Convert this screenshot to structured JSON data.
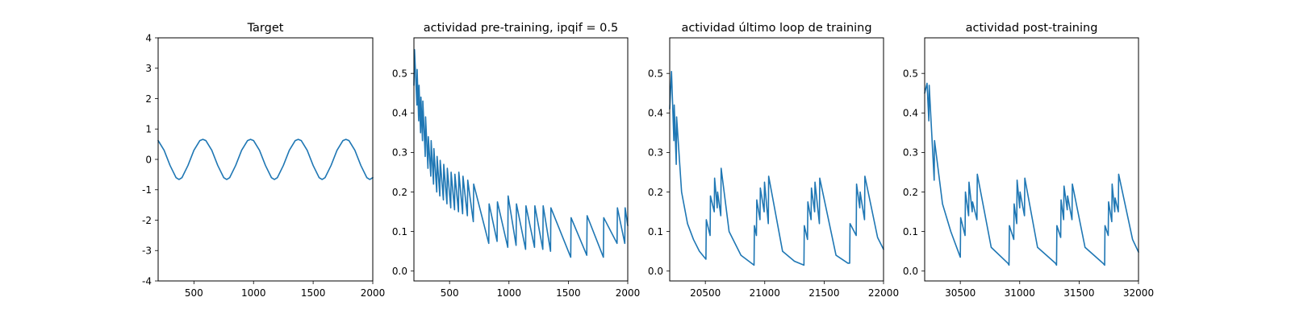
{
  "chart_data": [
    {
      "type": "line",
      "title": "Target",
      "xlim": [
        200,
        2000
      ],
      "ylim": [
        -4,
        4
      ],
      "xticks": [
        500,
        1000,
        1500,
        2000
      ],
      "yticks": [
        -4,
        -3,
        -2,
        -1,
        0,
        1,
        2,
        3,
        4
      ],
      "line_color": "#1f77b4",
      "series": [
        {
          "x": [
            200,
            250,
            300,
            350,
            375,
            400,
            450,
            500,
            550,
            575,
            600,
            650,
            700,
            750,
            775,
            800,
            850,
            900,
            950,
            975,
            1000,
            1050,
            1100,
            1150,
            1175,
            1200,
            1250,
            1300,
            1350,
            1375,
            1400,
            1450,
            1500,
            1550,
            1575,
            1600,
            1650,
            1700,
            1750,
            1775,
            1800,
            1850,
            1900,
            1950,
            1975,
            2000
          ],
          "y": [
            0.62,
            0.3,
            -0.2,
            -0.6,
            -0.66,
            -0.6,
            -0.2,
            0.3,
            0.62,
            0.66,
            0.62,
            0.3,
            -0.2,
            -0.6,
            -0.66,
            -0.6,
            -0.2,
            0.3,
            0.62,
            0.66,
            0.62,
            0.3,
            -0.2,
            -0.6,
            -0.66,
            -0.6,
            -0.2,
            0.3,
            0.62,
            0.66,
            0.62,
            0.3,
            -0.2,
            -0.6,
            -0.66,
            -0.6,
            -0.2,
            0.3,
            0.62,
            0.66,
            0.62,
            0.3,
            -0.2,
            -0.6,
            -0.66,
            -0.6
          ]
        }
      ]
    },
    {
      "type": "line",
      "title": "actividad pre-training, ipqif = 0.5",
      "xlim": [
        200,
        2000
      ],
      "ylim": [
        -0.025,
        0.59
      ],
      "xticks": [
        500,
        1000,
        1500,
        2000
      ],
      "yticks": [
        0.0,
        0.1,
        0.2,
        0.3,
        0.4,
        0.5
      ],
      "line_color": "#1f77b4",
      "series": [
        {
          "x": [
            200,
            205,
            225,
            227,
            240,
            243,
            256,
            259,
            272,
            275,
            295,
            298,
            318,
            321,
            342,
            345,
            365,
            368,
            392,
            395,
            418,
            421,
            448,
            451,
            478,
            481,
            510,
            513,
            542,
            545,
            575,
            578,
            610,
            613,
            650,
            653,
            700,
            703,
            830,
            833,
            900,
            903,
            990,
            993,
            1060,
            1063,
            1140,
            1143,
            1215,
            1218,
            1285,
            1288,
            1350,
            1353,
            1520,
            1523,
            1655,
            1658,
            1795,
            1798,
            1910,
            1913,
            1975,
            1978,
            2000
          ],
          "y": [
            0.47,
            0.56,
            0.42,
            0.51,
            0.38,
            0.47,
            0.35,
            0.44,
            0.33,
            0.43,
            0.29,
            0.39,
            0.26,
            0.34,
            0.24,
            0.33,
            0.22,
            0.31,
            0.2,
            0.29,
            0.19,
            0.28,
            0.18,
            0.27,
            0.17,
            0.26,
            0.16,
            0.25,
            0.155,
            0.245,
            0.15,
            0.25,
            0.145,
            0.24,
            0.14,
            0.23,
            0.125,
            0.22,
            0.07,
            0.17,
            0.075,
            0.175,
            0.06,
            0.19,
            0.065,
            0.17,
            0.055,
            0.165,
            0.06,
            0.165,
            0.055,
            0.165,
            0.05,
            0.16,
            0.035,
            0.135,
            0.04,
            0.14,
            0.035,
            0.135,
            0.07,
            0.16,
            0.07,
            0.16,
            0.115
          ]
        }
      ]
    },
    {
      "type": "line",
      "title": "actividad último loop de training",
      "xlim": [
        20200,
        22000
      ],
      "ylim": [
        -0.025,
        0.59
      ],
      "xticks": [
        20500,
        21000,
        21500,
        22000
      ],
      "yticks": [
        0.0,
        0.1,
        0.2,
        0.3,
        0.4,
        0.5
      ],
      "line_color": "#1f77b4",
      "series": [
        {
          "x": [
            20200,
            20215,
            20235,
            20238,
            20255,
            20258,
            20300,
            20350,
            20400,
            20450,
            20505,
            20508,
            20540,
            20543,
            20575,
            20578,
            20600,
            20603,
            20630,
            20633,
            20700,
            20800,
            20910,
            20913,
            20930,
            20933,
            20960,
            20963,
            20995,
            20998,
            21030,
            21033,
            21150,
            21250,
            21330,
            21333,
            21360,
            21363,
            21390,
            21393,
            21420,
            21423,
            21460,
            21463,
            21600,
            21700,
            21715,
            21718,
            21770,
            21773,
            21800,
            21803,
            21840,
            21843,
            21950,
            22000
          ],
          "y": [
            0.41,
            0.505,
            0.33,
            0.42,
            0.27,
            0.39,
            0.2,
            0.12,
            0.08,
            0.05,
            0.03,
            0.13,
            0.09,
            0.19,
            0.15,
            0.235,
            0.16,
            0.2,
            0.14,
            0.26,
            0.1,
            0.04,
            0.015,
            0.115,
            0.09,
            0.18,
            0.13,
            0.21,
            0.15,
            0.225,
            0.12,
            0.24,
            0.05,
            0.025,
            0.015,
            0.115,
            0.08,
            0.175,
            0.13,
            0.21,
            0.15,
            0.225,
            0.12,
            0.235,
            0.04,
            0.02,
            0.02,
            0.12,
            0.09,
            0.22,
            0.16,
            0.2,
            0.13,
            0.24,
            0.085,
            0.055
          ]
        }
      ]
    },
    {
      "type": "line",
      "title": "actividad post-training",
      "xlim": [
        30200,
        32000
      ],
      "ylim": [
        -0.025,
        0.59
      ],
      "xticks": [
        30500,
        31000,
        31500,
        32000
      ],
      "yticks": [
        0.0,
        0.1,
        0.2,
        0.3,
        0.4,
        0.5
      ],
      "line_color": "#1f77b4",
      "series": [
        {
          "x": [
            30200,
            30220,
            30235,
            30238,
            30280,
            30283,
            30350,
            30420,
            30500,
            30503,
            30540,
            30543,
            30570,
            30573,
            30600,
            30603,
            30640,
            30643,
            30760,
            30900,
            30910,
            30913,
            30950,
            30953,
            30975,
            30978,
            31000,
            31003,
            31040,
            31043,
            31150,
            31300,
            31310,
            31313,
            31345,
            31348,
            31370,
            31373,
            31400,
            31403,
            31440,
            31443,
            31550,
            31700,
            31715,
            31718,
            31745,
            31748,
            31775,
            31778,
            31800,
            31803,
            31830,
            31833,
            31950,
            32000
          ],
          "y": [
            0.45,
            0.475,
            0.38,
            0.47,
            0.23,
            0.33,
            0.17,
            0.1,
            0.035,
            0.135,
            0.09,
            0.2,
            0.14,
            0.225,
            0.15,
            0.175,
            0.13,
            0.245,
            0.06,
            0.02,
            0.015,
            0.115,
            0.08,
            0.17,
            0.12,
            0.23,
            0.16,
            0.2,
            0.14,
            0.235,
            0.06,
            0.02,
            0.015,
            0.115,
            0.085,
            0.18,
            0.13,
            0.215,
            0.155,
            0.19,
            0.13,
            0.22,
            0.06,
            0.02,
            0.015,
            0.115,
            0.09,
            0.175,
            0.125,
            0.22,
            0.15,
            0.185,
            0.15,
            0.245,
            0.08,
            0.048
          ]
        }
      ]
    }
  ]
}
